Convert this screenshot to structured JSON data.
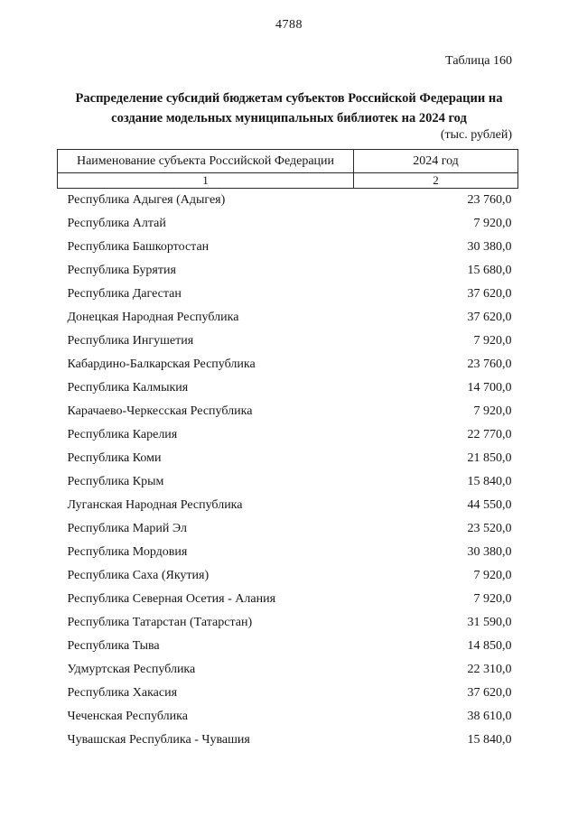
{
  "page": {
    "page_number": "4788",
    "table_label": "Таблица 160",
    "title": "Распределение субсидий бюджетам субъектов Российской Федерации на создание модельных муниципальных библиотек на 2024 год",
    "units": "(тыс. рублей)"
  },
  "table": {
    "columns": [
      {
        "header": "Наименование субъекта Российской Федерации",
        "index_label": "1"
      },
      {
        "header": "2024 год",
        "index_label": "2"
      }
    ],
    "rows": [
      {
        "name": "Республика Адыгея (Адыгея)",
        "value": "23 760,0"
      },
      {
        "name": "Республика Алтай",
        "value": "7 920,0"
      },
      {
        "name": "Республика Башкортостан",
        "value": "30 380,0"
      },
      {
        "name": "Республика Бурятия",
        "value": "15 680,0"
      },
      {
        "name": "Республика Дагестан",
        "value": "37 620,0"
      },
      {
        "name": "Донецкая Народная Республика",
        "value": "37 620,0"
      },
      {
        "name": "Республика Ингушетия",
        "value": "7 920,0"
      },
      {
        "name": "Кабардино-Балкарская Республика",
        "value": "23 760,0"
      },
      {
        "name": "Республика Калмыкия",
        "value": "14 700,0"
      },
      {
        "name": "Карачаево-Черкесская Республика",
        "value": "7 920,0"
      },
      {
        "name": "Республика Карелия",
        "value": "22 770,0"
      },
      {
        "name": "Республика Коми",
        "value": "21 850,0"
      },
      {
        "name": "Республика Крым",
        "value": "15 840,0"
      },
      {
        "name": "Луганская Народная Республика",
        "value": "44 550,0"
      },
      {
        "name": "Республика Марий Эл",
        "value": "23 520,0"
      },
      {
        "name": "Республика Мордовия",
        "value": "30 380,0"
      },
      {
        "name": "Республика Саха (Якутия)",
        "value": "7 920,0"
      },
      {
        "name": "Республика Северная Осетия - Алания",
        "value": "7 920,0"
      },
      {
        "name": "Республика Татарстан (Татарстан)",
        "value": "31 590,0"
      },
      {
        "name": "Республика Тыва",
        "value": "14 850,0"
      },
      {
        "name": "Удмуртская Республика",
        "value": "22 310,0"
      },
      {
        "name": "Республика Хакасия",
        "value": "37 620,0"
      },
      {
        "name": "Чеченская Республика",
        "value": "38 610,0"
      },
      {
        "name": "Чувашская Республика - Чувашия",
        "value": "15 840,0"
      }
    ]
  }
}
